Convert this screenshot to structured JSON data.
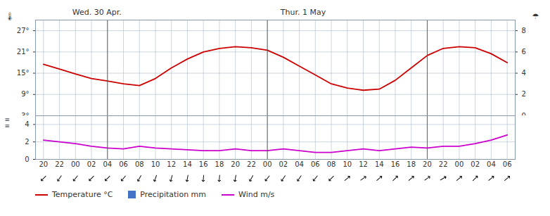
{
  "chart_data": [
    {
      "type": "line",
      "annotations": [
        "Wed. 30 Apr.",
        "Thur. 1 May",
        "🌡",
        "☂"
      ],
      "categories": [
        "20",
        "22",
        "00",
        "02",
        "04",
        "06",
        "08",
        "10",
        "12",
        "14",
        "16",
        "18",
        "20",
        "22",
        "00",
        "02",
        "04",
        "06",
        "08",
        "10",
        "12",
        "14",
        "16",
        "18",
        "20",
        "22",
        "00",
        "02",
        "04",
        "06"
      ],
      "series": [
        {
          "name": "Temperature °C",
          "type": "line",
          "color": "#cc0000",
          "values": [
            17.5,
            16.2,
            14.8,
            13.5,
            12.8,
            12.0,
            11.5,
            13.5,
            16.5,
            19.0,
            21.0,
            22.0,
            22.5,
            22.2,
            21.5,
            19.5,
            17.0,
            14.5,
            12.0,
            10.8,
            10.2,
            10.5,
            13.0,
            16.5,
            20.0,
            22.0,
            22.5,
            22.2,
            20.5,
            18.0
          ]
        }
      ],
      "ylim": [
        3,
        30
      ],
      "yticks": [
        {
          "value": 3,
          "label": "3°"
        },
        {
          "value": 9,
          "label": "9°"
        },
        {
          "value": 15,
          "label": "15°"
        },
        {
          "value": 21,
          "label": "21°"
        },
        {
          "value": 27,
          "label": "27°"
        }
      ],
      "y2lim": [
        0,
        9.0
      ],
      "y2ticks": [
        0,
        2,
        4,
        6,
        8
      ],
      "grid": true,
      "tick_labels": "y",
      "vlines": [
        4,
        14,
        24
      ]
    },
    {
      "type": "line",
      "annotations": [
        "≡\n≡"
      ],
      "categories": [
        "20",
        "22",
        "00",
        "02",
        "04",
        "06",
        "08",
        "10",
        "12",
        "14",
        "16",
        "18",
        "20",
        "22",
        "00",
        "02",
        "04",
        "06",
        "08",
        "10",
        "12",
        "14",
        "16",
        "18",
        "20",
        "22",
        "00",
        "02",
        "04",
        "06"
      ],
      "series": [
        {
          "name": "Precipitation mm",
          "type": "bar",
          "color": "#4472c4",
          "values": [
            0,
            0,
            0,
            0,
            0,
            0,
            0,
            0,
            0,
            0,
            0,
            0,
            0,
            0,
            0,
            0,
            0,
            0,
            0,
            0,
            0,
            0,
            0,
            0,
            0,
            0,
            0,
            0,
            0,
            0
          ]
        },
        {
          "name": "Wind m/s",
          "type": "line",
          "color": "#cc00cc",
          "values": [
            2.2,
            2.0,
            1.8,
            1.5,
            1.3,
            1.2,
            1.5,
            1.3,
            1.2,
            1.1,
            1.0,
            1.0,
            1.2,
            1.0,
            1.0,
            1.2,
            1.0,
            0.8,
            0.8,
            1.0,
            1.2,
            1.0,
            1.2,
            1.4,
            1.3,
            1.5,
            1.5,
            1.8,
            2.2,
            2.8
          ],
          "wind_direction": [
            225,
            215,
            220,
            225,
            225,
            220,
            210,
            200,
            195,
            190,
            185,
            185,
            190,
            210,
            220,
            215,
            215,
            220,
            225,
            50,
            55,
            50,
            45,
            50,
            55,
            60,
            50,
            45,
            50,
            50
          ]
        }
      ],
      "ylim": [
        0,
        5.0
      ],
      "yticks": [
        0,
        2,
        4
      ],
      "grid": true,
      "vlines": [
        4,
        14,
        24
      ],
      "legend": "bottom"
    }
  ]
}
